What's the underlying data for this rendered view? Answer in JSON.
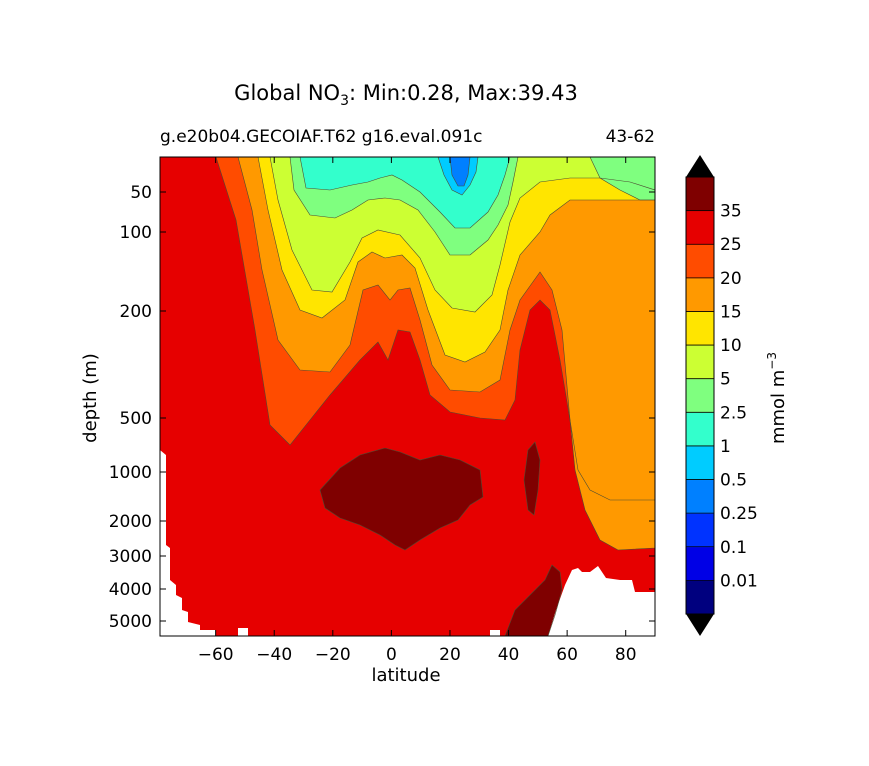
{
  "chart_data": {
    "type": "heatmap",
    "title_main": "Global NO",
    "title_sub3": "3",
    "title_rest": ": Min:0.28, Max:39.43",
    "case_label": "g.e20b04.GECOIAF.T62 g16.eval.091c",
    "years_label": "43-62",
    "xlabel": "latitude",
    "ylabel": "depth (m)",
    "xlim": [
      -79,
      90
    ],
    "xticks": [
      -60,
      -40,
      -20,
      0,
      20,
      40,
      60,
      80
    ],
    "xtick_labels": [
      "−60",
      "−40",
      "−20",
      "0",
      "20",
      "40",
      "60",
      "80"
    ],
    "yticks": [
      50,
      100,
      200,
      500,
      1000,
      2000,
      3000,
      4000,
      5000
    ],
    "ytick_labels": [
      "50",
      "100",
      "200",
      "500",
      "1000",
      "2000",
      "3000",
      "4000",
      "5000"
    ],
    "colorbar_label": "mmol m",
    "colorbar_label_exp": "−3",
    "levels": [
      0.01,
      0.1,
      0.25,
      0.5,
      1,
      2.5,
      5,
      10,
      15,
      20,
      25,
      35
    ],
    "level_labels": [
      "0.01",
      "0.1",
      "0.25",
      "0.5",
      "1",
      "2.5",
      "5",
      "10",
      "15",
      "20",
      "25",
      "35"
    ],
    "colors": [
      "#00007f",
      "#0000e6",
      "#0033ff",
      "#0080ff",
      "#00ccff",
      "#33ffcc",
      "#7fff7f",
      "#ccff33",
      "#ffe500",
      "#ff9900",
      "#ff4c00",
      "#e60000",
      "#7f0000"
    ],
    "extend": "both",
    "outline_color": "#4d4d33"
  }
}
